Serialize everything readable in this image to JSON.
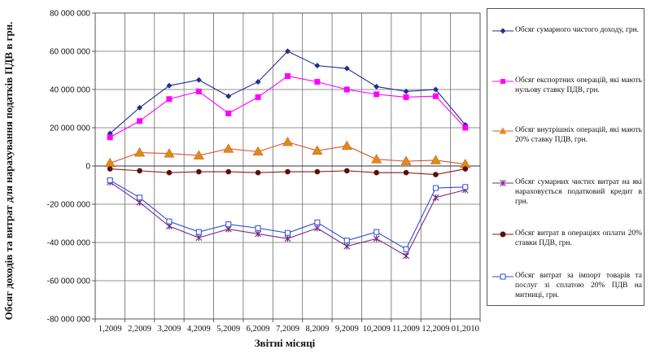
{
  "chart_data": {
    "type": "line",
    "xlabel": "Звітні місяці",
    "ylabel": "Обсяг доходів та витрат для нарахування податків ПДВ в грн.",
    "ylim": [
      -80000000,
      80000000
    ],
    "yticks": [
      -80000000,
      -60000000,
      -40000000,
      -20000000,
      0,
      20000000,
      40000000,
      60000000,
      80000000
    ],
    "ytick_labels": [
      "-80 000 000",
      "-60 000 000",
      "-40 000 000",
      "-20 000 000",
      "0",
      "20 000 000",
      "40 000 000",
      "60 000 000",
      "80 000 000"
    ],
    "categories": [
      "1,2009",
      "2,2009",
      "3,2009",
      "4,2009",
      "5,2009",
      "6,2009",
      "7,2009",
      "8,2009",
      "9,2009",
      "10,2009",
      "11,2009",
      "12,2009",
      "01,2010"
    ],
    "grid": true,
    "legend_position": "right",
    "series": [
      {
        "name": "Обсяг сумарного чистого доходу, грн.",
        "color": "#1f2f8f",
        "marker": "diamond",
        "values": [
          17000000,
          30500000,
          42000000,
          45000000,
          36500000,
          44000000,
          60000000,
          52500000,
          51000000,
          41500000,
          39000000,
          40000000,
          21500000
        ]
      },
      {
        "name": "Обсяг експортних операцій, які мають нульову ставку ПДВ, грн.",
        "color": "#ff00ff",
        "marker": "square",
        "values": [
          15000000,
          23500000,
          35000000,
          39000000,
          27500000,
          36000000,
          47000000,
          44000000,
          40000000,
          37500000,
          36000000,
          36500000,
          20000000
        ]
      },
      {
        "name": "Обсяг внутрішніх операцій, які мають 20% ставку ПДВ, грн.",
        "color": "#e0502a",
        "marker": "triangle",
        "values": [
          1500000,
          7000000,
          6500000,
          5500000,
          9000000,
          7500000,
          12500000,
          8000000,
          10500000,
          3500000,
          2500000,
          3000000,
          1000000
        ]
      },
      {
        "name": "Обсяг сумарних чистих витрат на які нараховується податковий кредит в грн.",
        "color": "#7a2a8a",
        "marker": "star",
        "values": [
          -8500000,
          -19000000,
          -31500000,
          -37500000,
          -33000000,
          -35500000,
          -38000000,
          -32500000,
          -42000000,
          -38000000,
          -47000000,
          -16500000,
          -12500000
        ]
      },
      {
        "name": "Обсяг витрат в операціях оплати 20% ставки ПДВ, грн.",
        "color": "#8b1a1a",
        "marker": "circle",
        "values": [
          -1500000,
          -2500000,
          -3500000,
          -3000000,
          -3000000,
          -3500000,
          -3000000,
          -3000000,
          -2500000,
          -3500000,
          -3500000,
          -4500000,
          -1500000
        ]
      },
      {
        "name": "Обсяг витрат за імпорт товарів та послуг зі сплатою 20% ПДВ на митниці, грн.",
        "color": "#2a4fd6",
        "marker": "hollow-square",
        "values": [
          -7500000,
          -16500000,
          -29000000,
          -34500000,
          -30500000,
          -32500000,
          -35000000,
          -29500000,
          -39000000,
          -34500000,
          -43500000,
          -11500000,
          -11000000
        ]
      }
    ]
  }
}
